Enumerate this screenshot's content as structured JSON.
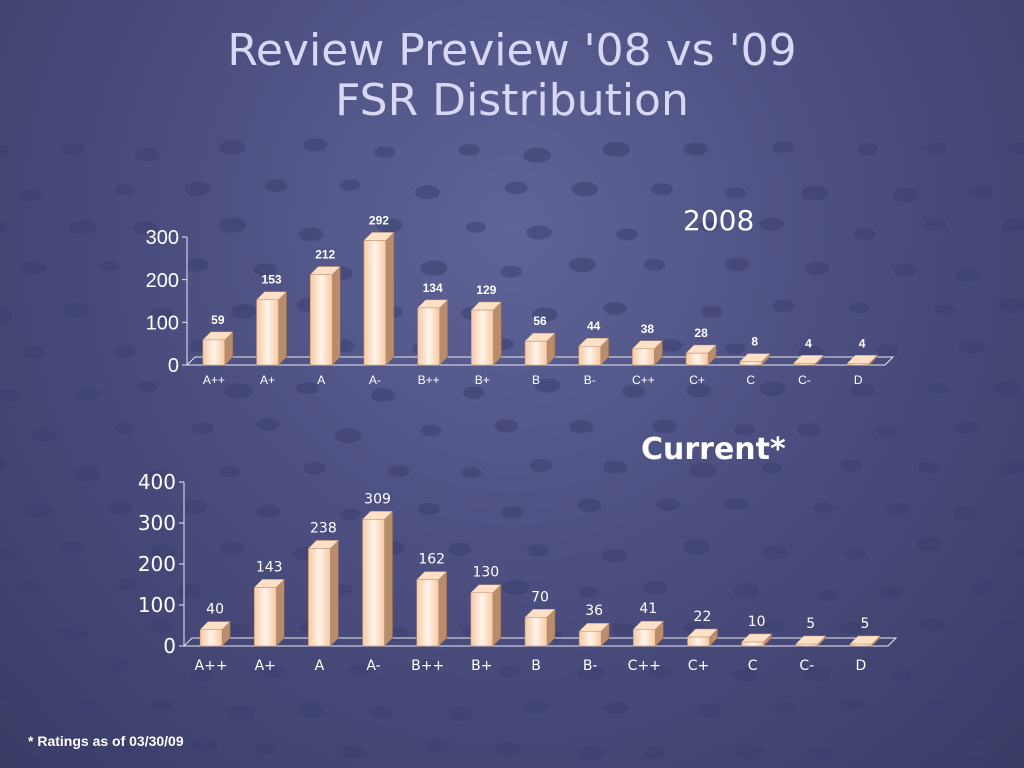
{
  "slide": {
    "title_line1": "Review Preview '08 vs '09",
    "title_line2": "FSR Distribution",
    "footnote": "* Ratings as of 03/30/09"
  },
  "colors": {
    "background": "#4c4f80",
    "bar_front": "#f6c9a3",
    "bar_highlight": "#fff4ea",
    "bar_side": "#b98d6c",
    "bar_top": "#fde0c6",
    "text": "#ffffff",
    "title": "#d8d8f4"
  },
  "chart_data": [
    {
      "type": "bar",
      "title": "2008",
      "categories": [
        "A++",
        "A+",
        "A",
        "A-",
        "B++",
        "B+",
        "B",
        "B-",
        "C++",
        "C+",
        "C",
        "C-",
        "D"
      ],
      "values": [
        59,
        153,
        212,
        292,
        134,
        129,
        56,
        44,
        38,
        28,
        8,
        4,
        4
      ],
      "yticks": [
        0,
        100,
        200,
        300
      ],
      "ylim": [
        0,
        300
      ],
      "xlabel": "",
      "ylabel": "",
      "grid": false,
      "legend": "none"
    },
    {
      "type": "bar",
      "title": "Current*",
      "categories": [
        "A++",
        "A+",
        "A",
        "A-",
        "B++",
        "B+",
        "B",
        "B-",
        "C++",
        "C+",
        "C",
        "C-",
        "D"
      ],
      "values": [
        40,
        143,
        238,
        309,
        162,
        130,
        70,
        36,
        41,
        22,
        10,
        5,
        5
      ],
      "yticks": [
        0,
        100,
        200,
        300,
        400
      ],
      "ylim": [
        0,
        400
      ],
      "xlabel": "",
      "ylabel": "",
      "grid": false,
      "legend": "none"
    }
  ]
}
